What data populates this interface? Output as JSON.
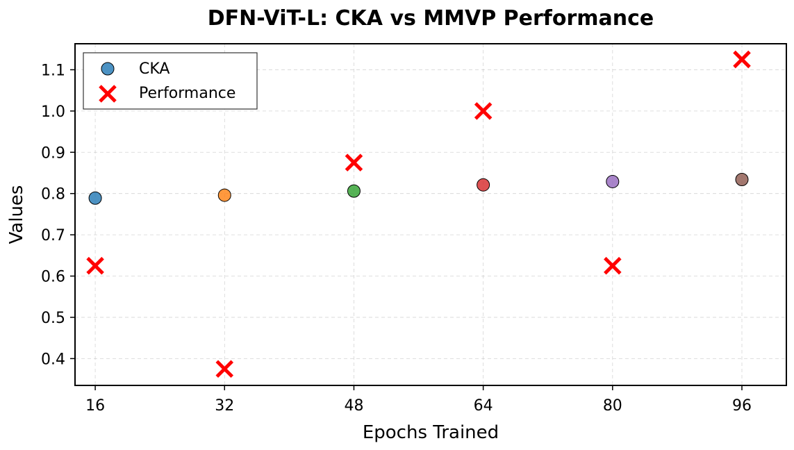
{
  "chart_data": {
    "type": "scatter",
    "title": "DFN-ViT-L: CKA vs MMVP Performance",
    "xlabel": "Epochs Trained",
    "ylabel": "Values",
    "xlim": [
      13.5,
      101.5
    ],
    "ylim": [
      0.335,
      1.163
    ],
    "xticks": [
      16,
      32,
      48,
      64,
      80,
      96
    ],
    "yticks": [
      0.4,
      0.5,
      0.6,
      0.7,
      0.8,
      0.9,
      1.0,
      1.1
    ],
    "ytick_labels": [
      "0.4",
      "0.5",
      "0.6",
      "0.7",
      "0.8",
      "0.9",
      "1.0",
      "1.1"
    ],
    "grid": true,
    "legend_position": "top-left",
    "series": [
      {
        "name": "CKA",
        "marker": "circle",
        "colors": [
          "#1f77b4",
          "#ff7f0e",
          "#2ca02c",
          "#d62728",
          "#9467bd",
          "#8c564b"
        ],
        "points": [
          {
            "x": 16,
            "y": 0.789
          },
          {
            "x": 32,
            "y": 0.796
          },
          {
            "x": 48,
            "y": 0.806
          },
          {
            "x": 64,
            "y": 0.821
          },
          {
            "x": 80,
            "y": 0.829
          },
          {
            "x": 96,
            "y": 0.834
          }
        ]
      },
      {
        "name": "Performance",
        "marker": "x",
        "color": "#ff0000",
        "points": [
          {
            "x": 16,
            "y": 0.625
          },
          {
            "x": 32,
            "y": 0.375
          },
          {
            "x": 48,
            "y": 0.875
          },
          {
            "x": 64,
            "y": 1.0
          },
          {
            "x": 80,
            "y": 0.625
          },
          {
            "x": 96,
            "y": 1.125
          }
        ]
      }
    ]
  }
}
